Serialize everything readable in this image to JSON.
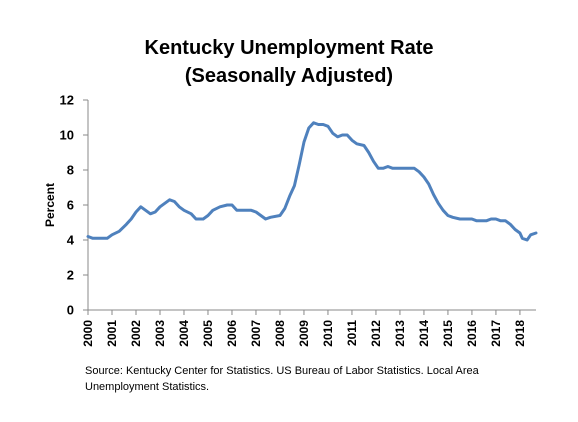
{
  "chart_data": {
    "type": "line",
    "title": "Kentucky Unemployment Rate\n(Seasonally Adjusted)",
    "xlabel": "",
    "ylabel": "Percent",
    "xlim": [
      2000,
      2018.67
    ],
    "ylim": [
      0,
      12
    ],
    "y_ticks": [
      "0",
      "2",
      "4",
      "6",
      "8",
      "10",
      "12"
    ],
    "x_ticks": [
      "2000",
      "2001",
      "2002",
      "2003",
      "2004",
      "2005",
      "2006",
      "2007",
      "2008",
      "2009",
      "2010",
      "2011",
      "2012",
      "2013",
      "2014",
      "2015",
      "2016",
      "2017",
      "2018"
    ],
    "grid": false,
    "legend": "none",
    "line_color": "#4f81bd",
    "series": [
      {
        "values": [
          [
            2000.0,
            4.2
          ],
          [
            2000.2,
            4.1
          ],
          [
            2000.5,
            4.1
          ],
          [
            2000.8,
            4.1
          ],
          [
            2001.0,
            4.3
          ],
          [
            2001.3,
            4.5
          ],
          [
            2001.6,
            4.9
          ],
          [
            2001.8,
            5.2
          ],
          [
            2002.0,
            5.6
          ],
          [
            2002.2,
            5.9
          ],
          [
            2002.4,
            5.7
          ],
          [
            2002.6,
            5.5
          ],
          [
            2002.8,
            5.6
          ],
          [
            2003.0,
            5.9
          ],
          [
            2003.2,
            6.1
          ],
          [
            2003.4,
            6.3
          ],
          [
            2003.6,
            6.2
          ],
          [
            2003.8,
            5.9
          ],
          [
            2004.0,
            5.7
          ],
          [
            2004.3,
            5.5
          ],
          [
            2004.5,
            5.2
          ],
          [
            2004.8,
            5.2
          ],
          [
            2005.0,
            5.4
          ],
          [
            2005.2,
            5.7
          ],
          [
            2005.5,
            5.9
          ],
          [
            2005.8,
            6.0
          ],
          [
            2006.0,
            6.0
          ],
          [
            2006.2,
            5.7
          ],
          [
            2006.5,
            5.7
          ],
          [
            2006.8,
            5.7
          ],
          [
            2007.0,
            5.6
          ],
          [
            2007.2,
            5.4
          ],
          [
            2007.4,
            5.2
          ],
          [
            2007.6,
            5.3
          ],
          [
            2008.0,
            5.4
          ],
          [
            2008.2,
            5.8
          ],
          [
            2008.4,
            6.5
          ],
          [
            2008.6,
            7.1
          ],
          [
            2008.8,
            8.3
          ],
          [
            2009.0,
            9.6
          ],
          [
            2009.2,
            10.4
          ],
          [
            2009.4,
            10.7
          ],
          [
            2009.6,
            10.6
          ],
          [
            2009.8,
            10.6
          ],
          [
            2010.0,
            10.5
          ],
          [
            2010.2,
            10.1
          ],
          [
            2010.4,
            9.9
          ],
          [
            2010.6,
            10.0
          ],
          [
            2010.8,
            10.0
          ],
          [
            2011.0,
            9.7
          ],
          [
            2011.2,
            9.5
          ],
          [
            2011.5,
            9.4
          ],
          [
            2011.7,
            9.0
          ],
          [
            2011.9,
            8.5
          ],
          [
            2012.1,
            8.1
          ],
          [
            2012.3,
            8.1
          ],
          [
            2012.5,
            8.2
          ],
          [
            2012.7,
            8.1
          ],
          [
            2013.0,
            8.1
          ],
          [
            2013.3,
            8.1
          ],
          [
            2013.6,
            8.1
          ],
          [
            2013.8,
            7.9
          ],
          [
            2014.0,
            7.6
          ],
          [
            2014.2,
            7.2
          ],
          [
            2014.4,
            6.6
          ],
          [
            2014.6,
            6.1
          ],
          [
            2014.8,
            5.7
          ],
          [
            2015.0,
            5.4
          ],
          [
            2015.2,
            5.3
          ],
          [
            2015.5,
            5.2
          ],
          [
            2015.8,
            5.2
          ],
          [
            2016.0,
            5.2
          ],
          [
            2016.2,
            5.1
          ],
          [
            2016.4,
            5.1
          ],
          [
            2016.6,
            5.1
          ],
          [
            2016.8,
            5.2
          ],
          [
            2017.0,
            5.2
          ],
          [
            2017.2,
            5.1
          ],
          [
            2017.4,
            5.1
          ],
          [
            2017.6,
            4.9
          ],
          [
            2017.8,
            4.6
          ],
          [
            2018.0,
            4.4
          ],
          [
            2018.1,
            4.1
          ],
          [
            2018.3,
            4.0
          ],
          [
            2018.45,
            4.3
          ],
          [
            2018.67,
            4.4
          ]
        ]
      }
    ]
  },
  "source_note": "Source: Kentucky Center for Statistics. US Bureau of Labor Statistics. Local Area Unemployment Statistics."
}
